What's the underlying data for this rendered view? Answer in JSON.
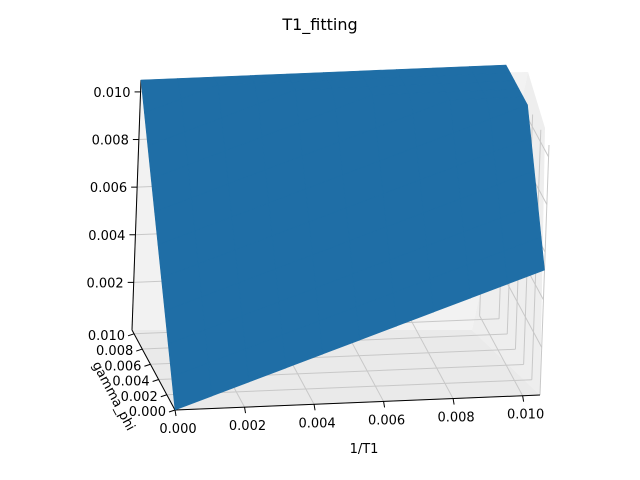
{
  "chart_data": {
    "type": "surface3d",
    "title": "T1_fitting",
    "xlabel": "1/T1",
    "ylabel": "gamma_phi",
    "zlabel": "",
    "xlim": [
      0,
      0.0105
    ],
    "ylim": [
      0,
      0.0105
    ],
    "zlim": [
      0,
      0.0105
    ],
    "x_ticks": [
      "0.000",
      "0.002",
      "0.004",
      "0.006",
      "0.008",
      "0.010"
    ],
    "y_ticks": [
      "0.000",
      "0.002",
      "0.004",
      "0.006",
      "0.008",
      "0.010"
    ],
    "z_ticks": [
      "0.002",
      "0.004",
      "0.006",
      "0.008",
      "0.010"
    ],
    "surface": {
      "description_formula": "z = x/2 + y",
      "x_range": [
        0,
        0.0105
      ],
      "y_range": [
        0,
        0.0105
      ],
      "color": "#1f6ea6"
    }
  }
}
